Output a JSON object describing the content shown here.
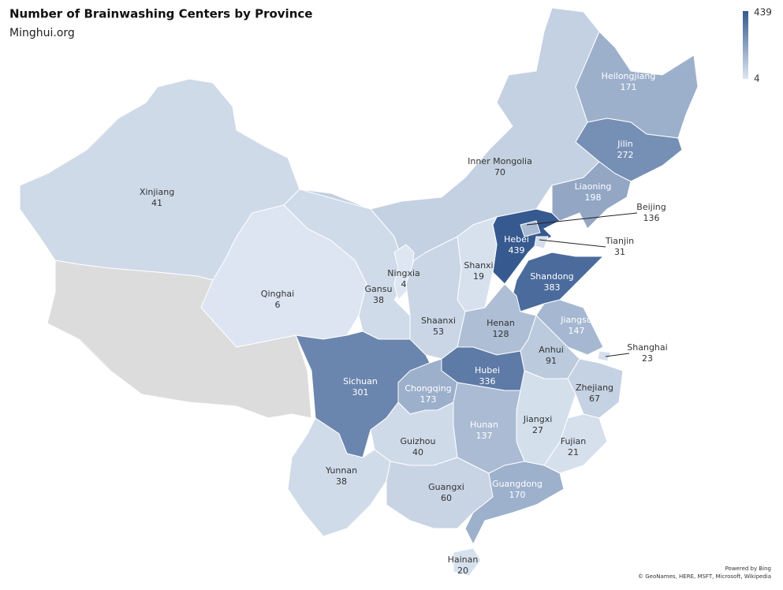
{
  "chart_data": {
    "type": "choropleth",
    "title": "Number of Brainwashing Centers by Province",
    "subtitle": "Minghui.org",
    "regions": [
      {
        "name": "Xinjiang",
        "value": 41
      },
      {
        "name": "Qinghai",
        "value": 6
      },
      {
        "name": "Gansu",
        "value": 38
      },
      {
        "name": "Inner Mongolia",
        "value": 70
      },
      {
        "name": "Heilongjiang",
        "value": 171
      },
      {
        "name": "Jilin",
        "value": 272
      },
      {
        "name": "Liaoning",
        "value": 198
      },
      {
        "name": "Hebei",
        "value": 439
      },
      {
        "name": "Shandong",
        "value": 383
      },
      {
        "name": "Shanxi",
        "value": 19
      },
      {
        "name": "Ningxia",
        "value": 4
      },
      {
        "name": "Shaanxi",
        "value": 53
      },
      {
        "name": "Henan",
        "value": 128
      },
      {
        "name": "Jiangsu",
        "value": 147
      },
      {
        "name": "Anhui",
        "value": 91
      },
      {
        "name": "Hubei",
        "value": 336
      },
      {
        "name": "Chongqing",
        "value": 173
      },
      {
        "name": "Sichuan",
        "value": 301
      },
      {
        "name": "Zhejiang",
        "value": 67
      },
      {
        "name": "Jiangxi",
        "value": 27
      },
      {
        "name": "Fujian",
        "value": 21
      },
      {
        "name": "Hunan",
        "value": 137
      },
      {
        "name": "Guizhou",
        "value": 40
      },
      {
        "name": "Yunnan",
        "value": 38
      },
      {
        "name": "Guangxi",
        "value": 60
      },
      {
        "name": "Guangdong",
        "value": 170
      },
      {
        "name": "Hainan",
        "value": 20
      },
      {
        "name": "Beijing",
        "value": 136
      },
      {
        "name": "Tianjin",
        "value": 31
      },
      {
        "name": "Shanghai",
        "value": 23
      }
    ],
    "color_scale": {
      "min": 4,
      "max": 439,
      "colors": [
        "#dde6f1",
        "#36598f"
      ]
    },
    "attribution": [
      "Powered by Bing",
      "© GeoNames, HERE, MSFT, Microsoft, Wikipedia"
    ]
  }
}
